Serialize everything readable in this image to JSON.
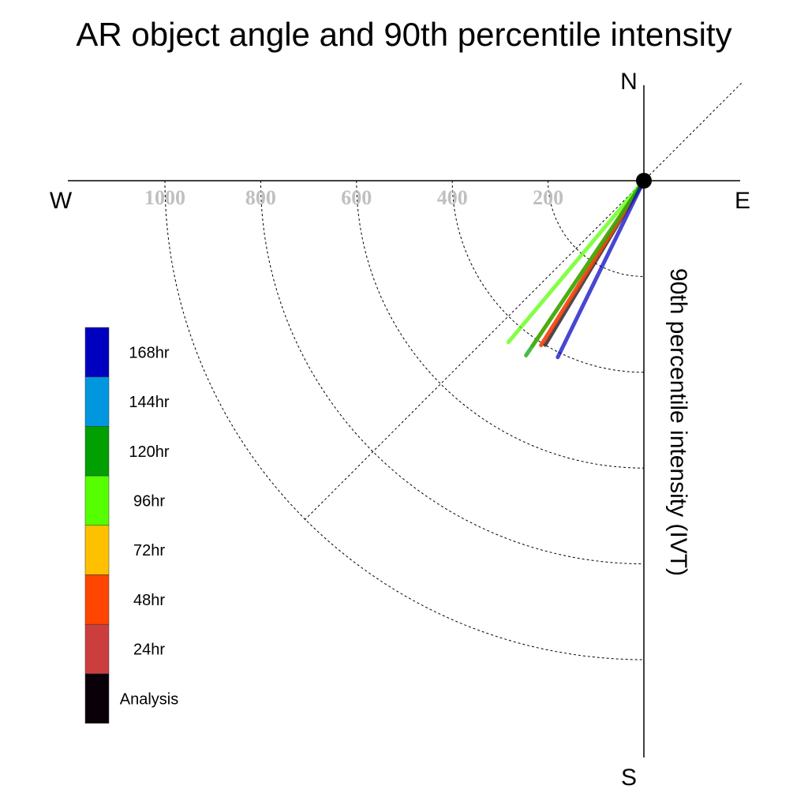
{
  "chart_data": {
    "type": "polar-vector",
    "title": "AR object angle and 90th percentile intensity",
    "ylabel": "90th percentile intensity (IVT)",
    "directions": {
      "north": "N",
      "south": "S",
      "east": "E",
      "west": "W"
    },
    "radial_ticks": [
      1000,
      800,
      600,
      400,
      200
    ],
    "radial_range": [
      0,
      1200
    ],
    "grid": true,
    "legend_position": "left",
    "series": [
      {
        "name": "168hr",
        "color": "#0000c0",
        "magnitude": 410,
        "angle_deg": 206
      },
      {
        "name": "144hr",
        "color": "#0097df",
        "magnitude": 0,
        "angle_deg": 0
      },
      {
        "name": "120hr",
        "color": "#00a000",
        "magnitude": 440,
        "angle_deg": 214
      },
      {
        "name": "96hr",
        "color": "#55ff00",
        "magnitude": 440,
        "angle_deg": 220
      },
      {
        "name": "72hr",
        "color": "#ffc000",
        "magnitude": 415,
        "angle_deg": 214
      },
      {
        "name": "48hr",
        "color": "#ff4500",
        "magnitude": 405,
        "angle_deg": 212
      },
      {
        "name": "24hr",
        "color": "#cc3e3e",
        "magnitude": 405,
        "angle_deg": 212
      },
      {
        "name": "Analysis",
        "color": "#0a0008",
        "magnitude": 400,
        "angle_deg": 211
      }
    ]
  }
}
